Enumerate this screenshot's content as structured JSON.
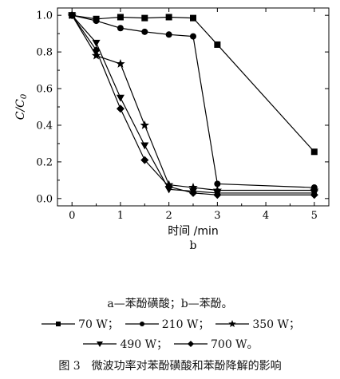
{
  "chart_data": {
    "type": "line",
    "xlabel": "时间 /min",
    "ylabel": "C/C0",
    "ylabel_main": "C/C",
    "ylabel_sub": "0",
    "panel_label": "b",
    "xlim": [
      -0.3,
      5.3
    ],
    "ylim": [
      -0.04,
      1.04
    ],
    "x_ticks": [
      "0",
      "1",
      "2",
      "3",
      "4",
      "5"
    ],
    "y_ticks": [
      "0.0",
      "0.2",
      "0.4",
      "0.6",
      "0.8",
      "1.0"
    ],
    "series": [
      {
        "name": "70 W",
        "marker": "square",
        "x": [
          0,
          0.5,
          1,
          1.5,
          2,
          2.5,
          3,
          5
        ],
        "y": [
          1.0,
          0.98,
          0.99,
          0.985,
          0.99,
          0.985,
          0.84,
          0.255
        ]
      },
      {
        "name": "210 W",
        "marker": "circle",
        "x": [
          0,
          0.5,
          1,
          1.5,
          2,
          2.5,
          3,
          5
        ],
        "y": [
          1.0,
          0.97,
          0.93,
          0.91,
          0.895,
          0.885,
          0.08,
          0.06
        ]
      },
      {
        "name": "350 W",
        "marker": "star",
        "x": [
          0,
          0.5,
          1,
          1.5,
          2,
          2.5,
          3,
          5
        ],
        "y": [
          1.0,
          0.78,
          0.735,
          0.4,
          0.075,
          0.06,
          0.045,
          0.045
        ]
      },
      {
        "name": "490 W",
        "marker": "triangle-down",
        "x": [
          0,
          0.5,
          1,
          1.5,
          2,
          2.5,
          3,
          5
        ],
        "y": [
          1.0,
          0.85,
          0.55,
          0.29,
          0.05,
          0.04,
          0.03,
          0.03
        ]
      },
      {
        "name": "700 W",
        "marker": "diamond",
        "x": [
          0,
          0.5,
          1,
          1.5,
          2,
          2.5,
          3,
          5
        ],
        "y": [
          1.0,
          0.81,
          0.49,
          0.21,
          0.065,
          0.03,
          0.02,
          0.02
        ]
      }
    ]
  },
  "caption": {
    "ab_line": "a—苯酚磺酸；b—苯酚。",
    "legend_row1": [
      {
        "marker": "square",
        "label": "70 W；"
      },
      {
        "marker": "circle",
        "label": "210 W；"
      },
      {
        "marker": "star",
        "label": "350 W；"
      }
    ],
    "legend_row2": [
      {
        "marker": "triangle-down",
        "label": "490 W；"
      },
      {
        "marker": "diamond",
        "label": "700 W。"
      }
    ],
    "figure_number": "图 3",
    "figure_title": "微波功率对苯酚磺酸和苯酚降解的影响"
  }
}
